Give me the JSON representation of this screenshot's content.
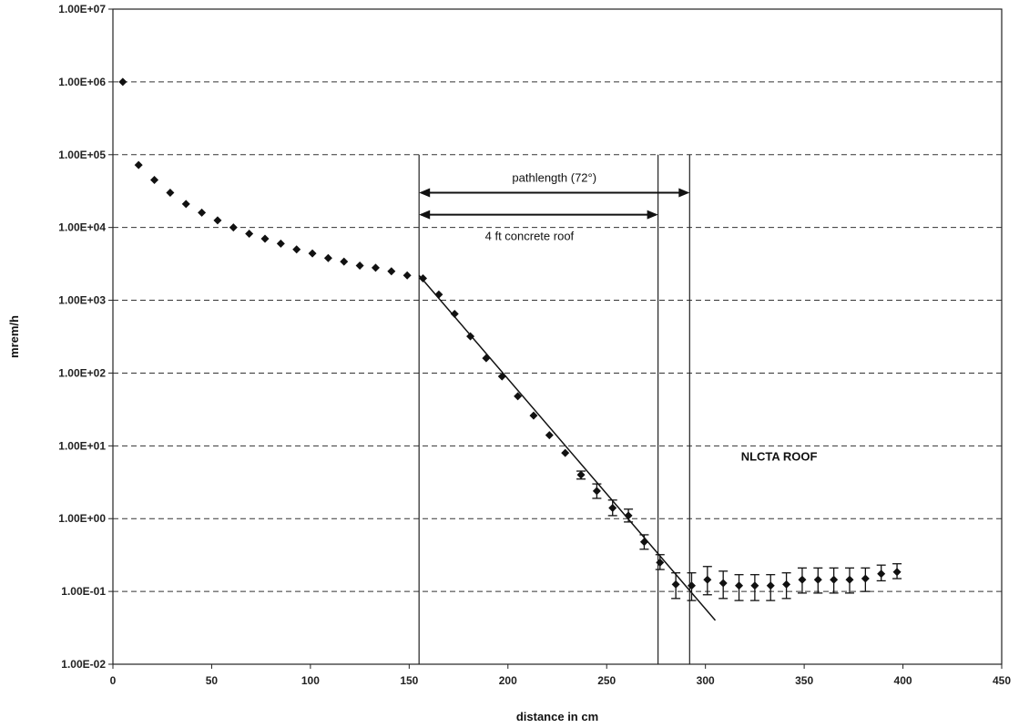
{
  "chart_data": {
    "type": "scatter",
    "title": "",
    "xlabel": "distance in cm",
    "ylabel": "mrem/h",
    "xlim": [
      0,
      450
    ],
    "ylim": [
      0.01,
      10000000
    ],
    "y_scale": "log",
    "grid": "horizontal dashed",
    "x_ticks": [
      "0",
      "50",
      "100",
      "150",
      "200",
      "250",
      "300",
      "350",
      "400",
      "450"
    ],
    "y_ticks": [
      "1.00E-02",
      "1.00E-01",
      "1.00E+00",
      "1.00E+01",
      "1.00E+02",
      "1.00E+03",
      "1.00E+04",
      "1.00E+05",
      "1.00E+06",
      "1.00E+07"
    ],
    "series": [
      {
        "points": [
          {
            "x": 5,
            "y": 1000000
          },
          {
            "x": 13,
            "y": 72000
          },
          {
            "x": 21,
            "y": 45000
          },
          {
            "x": 29,
            "y": 30000
          },
          {
            "x": 37,
            "y": 21000
          },
          {
            "x": 45,
            "y": 16000
          },
          {
            "x": 53,
            "y": 12500
          },
          {
            "x": 61,
            "y": 10000
          },
          {
            "x": 69,
            "y": 8200
          },
          {
            "x": 77,
            "y": 7000
          },
          {
            "x": 85,
            "y": 6000
          },
          {
            "x": 93,
            "y": 5000
          },
          {
            "x": 101,
            "y": 4400
          },
          {
            "x": 109,
            "y": 3800
          },
          {
            "x": 117,
            "y": 3400
          },
          {
            "x": 125,
            "y": 3000
          },
          {
            "x": 133,
            "y": 2800
          },
          {
            "x": 141,
            "y": 2500
          },
          {
            "x": 149,
            "y": 2200
          },
          {
            "x": 157,
            "y": 2000
          },
          {
            "x": 165,
            "y": 1200
          },
          {
            "x": 173,
            "y": 650
          },
          {
            "x": 181,
            "y": 320
          },
          {
            "x": 189,
            "y": 160
          },
          {
            "x": 197,
            "y": 90
          },
          {
            "x": 205,
            "y": 48
          },
          {
            "x": 213,
            "y": 26
          },
          {
            "x": 221,
            "y": 14
          },
          {
            "x": 229,
            "y": 8
          },
          {
            "x": 237,
            "y": 4,
            "err": [
              3.5,
              4.5
            ]
          },
          {
            "x": 245,
            "y": 2.4,
            "err": [
              1.9,
              3
            ]
          },
          {
            "x": 253,
            "y": 1.4,
            "err": [
              1.1,
              1.8
            ]
          },
          {
            "x": 261,
            "y": 1.1,
            "err": [
              0.9,
              1.35
            ]
          },
          {
            "x": 269,
            "y": 0.48,
            "err": [
              0.38,
              0.6
            ]
          },
          {
            "x": 277,
            "y": 0.25,
            "err": [
              0.2,
              0.32
            ]
          },
          {
            "x": 285,
            "y": 0.125,
            "err": [
              0.08,
              0.18
            ]
          },
          {
            "x": 293,
            "y": 0.12,
            "err": [
              0.075,
              0.18
            ]
          },
          {
            "x": 301,
            "y": 0.145,
            "err": [
              0.09,
              0.22
            ]
          },
          {
            "x": 309,
            "y": 0.13,
            "err": [
              0.08,
              0.19
            ]
          },
          {
            "x": 317,
            "y": 0.12,
            "err": [
              0.075,
              0.17
            ]
          },
          {
            "x": 325,
            "y": 0.12,
            "err": [
              0.075,
              0.17
            ]
          },
          {
            "x": 333,
            "y": 0.12,
            "err": [
              0.075,
              0.17
            ]
          },
          {
            "x": 341,
            "y": 0.125,
            "err": [
              0.08,
              0.18
            ]
          },
          {
            "x": 349,
            "y": 0.145,
            "err": [
              0.095,
              0.21
            ]
          },
          {
            "x": 357,
            "y": 0.145,
            "err": [
              0.095,
              0.21
            ]
          },
          {
            "x": 365,
            "y": 0.145,
            "err": [
              0.095,
              0.21
            ]
          },
          {
            "x": 373,
            "y": 0.145,
            "err": [
              0.095,
              0.21
            ]
          },
          {
            "x": 381,
            "y": 0.15,
            "err": [
              0.1,
              0.21
            ]
          },
          {
            "x": 389,
            "y": 0.175,
            "err": [
              0.14,
              0.23
            ]
          },
          {
            "x": 397,
            "y": 0.185,
            "err": [
              0.15,
              0.24
            ]
          }
        ]
      }
    ],
    "fit_line": {
      "x1": 155,
      "y1": 2200,
      "x2": 305,
      "y2": 0.04
    },
    "vertical_lines": [
      155,
      276,
      292
    ],
    "annotations": {
      "pathlength": {
        "text": "pathlength  (72°)",
        "x_start": 155,
        "x_end": 292,
        "y": 30000
      },
      "concrete": {
        "text": "4 ft concrete roof",
        "x_start": 155,
        "x_end": 276,
        "y": 15000
      },
      "roof_label": {
        "text": "NLCTA ROOF",
        "x": 318,
        "y": 10
      }
    }
  }
}
